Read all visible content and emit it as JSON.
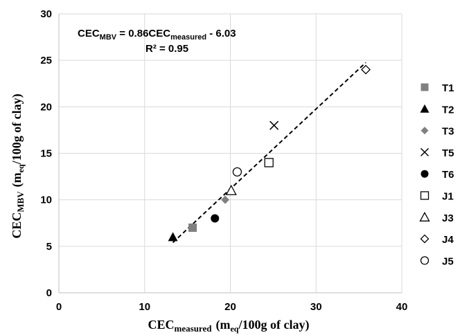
{
  "chart_data": {
    "type": "scatter",
    "xlim": [
      0,
      40
    ],
    "ylim": [
      0,
      30
    ],
    "x_ticks": [
      "0",
      "10",
      "20",
      "30",
      "40"
    ],
    "y_ticks": [
      "0",
      "5",
      "10",
      "15",
      "20",
      "25",
      "30"
    ],
    "grid": true,
    "legend_position": "right",
    "xlabel": {
      "main": "CEC",
      "sub": "measured",
      "pre": "(m",
      "sub2": "eq",
      "post": "/100g of clay)"
    },
    "ylabel": {
      "main": "CEC",
      "sub": "MBV",
      "pre": "(m",
      "sub2": "eq",
      "post": "/100g of clay)"
    },
    "equation": {
      "lhs": "CEC",
      "lhs_sub": "MBV",
      "mid": " = 0.86CEC",
      "rhs_sub": "measured",
      "tail": " - 6.03",
      "r2": "R² = 0.95"
    },
    "trendline": {
      "slope": 0.86,
      "intercept": -6.03,
      "x_range": [
        13.3,
        35.8
      ],
      "color": "#000000",
      "style": "dashed"
    },
    "series": [
      {
        "name": "T1",
        "marker": "square-filled",
        "color": "#808080",
        "x": 15.6,
        "y": 7.0
      },
      {
        "name": "T2",
        "marker": "triangle-filled",
        "color": "#000000",
        "x": 13.3,
        "y": 6.0
      },
      {
        "name": "T3",
        "marker": "diamond-filled",
        "color": "#808080",
        "x": 19.4,
        "y": 10.0
      },
      {
        "name": "T5",
        "marker": "x",
        "color": "#000000",
        "x": 25.1,
        "y": 18.0
      },
      {
        "name": "T6",
        "marker": "circle-filled",
        "color": "#000000",
        "x": 18.2,
        "y": 8.0
      },
      {
        "name": "J1",
        "marker": "square-open",
        "color": "#000000",
        "x": 24.5,
        "y": 14.0
      },
      {
        "name": "J3",
        "marker": "triangle-open",
        "color": "#000000",
        "x": 20.1,
        "y": 11.0
      },
      {
        "name": "J4",
        "marker": "diamond-open",
        "color": "#000000",
        "x": 35.8,
        "y": 24.0
      },
      {
        "name": "J5",
        "marker": "circle-open",
        "color": "#000000",
        "x": 20.8,
        "y": 13.0
      }
    ]
  }
}
